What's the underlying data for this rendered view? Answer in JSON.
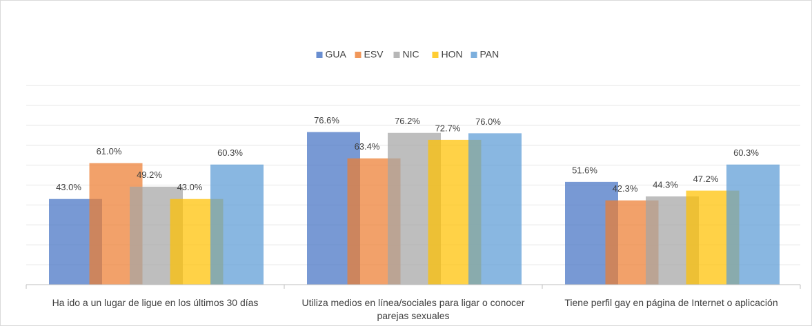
{
  "chart_data": {
    "type": "bar",
    "categories": [
      "Ha ido a un lugar de ligue  en los últimos 30 días",
      "Utiliza medios en línea/sociales  para ligar o conocer parejas sexuales",
      "Tiene  perfil gay en página de Internet o aplicación"
    ],
    "series": [
      {
        "name": "GUA",
        "color": "#4472c4",
        "values": [
          43.0,
          76.6,
          51.6
        ],
        "value_labels": [
          "43.0%",
          "76.6%",
          "51.6%"
        ]
      },
      {
        "name": "ESV",
        "color": "#ed7d31",
        "values": [
          61.0,
          63.4,
          42.3
        ],
        "value_labels": [
          "61.0%",
          "63.4%",
          "42.3%"
        ]
      },
      {
        "name": "NIC",
        "color": "#a5a5a5",
        "values": [
          49.2,
          76.2,
          44.3
        ],
        "value_labels": [
          "49.2%",
          "76.2%",
          "44.3%"
        ]
      },
      {
        "name": "HON",
        "color": "#ffc000",
        "values": [
          43.0,
          72.7,
          47.2
        ],
        "value_labels": [
          "43.0%",
          "72.7%",
          "47.2%"
        ]
      },
      {
        "name": "PAN",
        "color": "#5b9bd5",
        "values": [
          60.3,
          76.0,
          60.3
        ],
        "value_labels": [
          "60.3%",
          "76.0%",
          "60.3%"
        ]
      }
    ],
    "ylim": [
      0,
      100
    ],
    "yticks": [
      0,
      10,
      20,
      30,
      40,
      50,
      60,
      70,
      80,
      90,
      100
    ],
    "grid": true,
    "legend": "top"
  }
}
